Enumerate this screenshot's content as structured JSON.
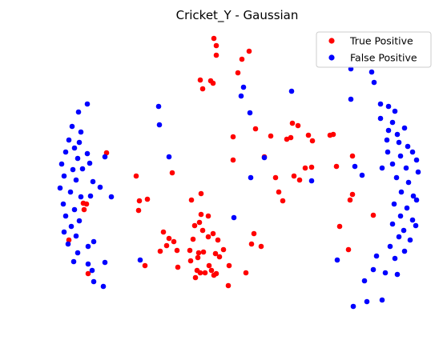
{
  "chart_data": {
    "type": "scatter",
    "title": "Cricket_Y - Gaussian",
    "xlabel": "",
    "ylabel": "",
    "axes_visible": false,
    "grid": false,
    "legend_placement": "top-right",
    "series": [
      {
        "name": "True Positive",
        "color": "#ff0000",
        "points": [
          [
            267,
            48
          ],
          [
            270,
            57
          ],
          [
            270,
            69
          ],
          [
            302,
            74
          ],
          [
            311,
            64
          ],
          [
            297,
            91
          ],
          [
            250,
            100
          ],
          [
            263,
            101
          ],
          [
            266,
            104
          ],
          [
            253,
            111
          ],
          [
            133,
            191
          ],
          [
            104,
            254
          ],
          [
            108,
            255
          ],
          [
            105,
            262
          ],
          [
            86,
            300
          ],
          [
            110,
            342
          ],
          [
            365,
            154
          ],
          [
            372,
            157
          ],
          [
            319,
            161
          ],
          [
            291,
            171
          ],
          [
            338,
            170
          ],
          [
            358,
            174
          ],
          [
            363,
            172
          ],
          [
            385,
            169
          ],
          [
            390,
            176
          ],
          [
            412,
            169
          ],
          [
            416,
            168
          ],
          [
            440,
            195
          ],
          [
            291,
            200
          ],
          [
            330,
            196
          ],
          [
            381,
            210
          ],
          [
            389,
            209
          ],
          [
            420,
            208
          ],
          [
            215,
            216
          ],
          [
            170,
            220
          ],
          [
            344,
            222
          ],
          [
            367,
            220
          ],
          [
            374,
            225
          ],
          [
            440,
            243
          ],
          [
            437,
            250
          ],
          [
            348,
            240
          ],
          [
            353,
            251
          ],
          [
            251,
            242
          ],
          [
            239,
            250
          ],
          [
            174,
            251
          ],
          [
            184,
            249
          ],
          [
            173,
            263
          ],
          [
            466,
            269
          ],
          [
            251,
            268
          ],
          [
            260,
            270
          ],
          [
            249,
            278
          ],
          [
            424,
            283
          ],
          [
            204,
            290
          ],
          [
            243,
            282
          ],
          [
            253,
            288
          ],
          [
            266,
            292
          ],
          [
            211,
            298
          ],
          [
            217,
            302
          ],
          [
            208,
            307
          ],
          [
            241,
            299
          ],
          [
            272,
            300
          ],
          [
            260,
            296
          ],
          [
            317,
            292
          ],
          [
            314,
            305
          ],
          [
            326,
            308
          ],
          [
            200,
            314
          ],
          [
            221,
            313
          ],
          [
            237,
            313
          ],
          [
            248,
            316
          ],
          [
            254,
            315
          ],
          [
            269,
            317
          ],
          [
            279,
            312
          ],
          [
            435,
            312
          ],
          [
            181,
            332
          ],
          [
            222,
            334
          ],
          [
            238,
            326
          ],
          [
            247,
            322
          ],
          [
            261,
            332
          ],
          [
            274,
            321
          ],
          [
            286,
            332
          ],
          [
            246,
            338
          ],
          [
            250,
            341
          ],
          [
            256,
            341
          ],
          [
            264,
            338
          ],
          [
            267,
            344
          ],
          [
            270,
            342
          ],
          [
            244,
            347
          ],
          [
            285,
            357
          ],
          [
            307,
            341
          ]
        ]
      },
      {
        "name": "False Positive",
        "color": "#0000ff",
        "points": [
          [
            109,
            130
          ],
          [
            98,
            140
          ],
          [
            90,
            158
          ],
          [
            101,
            165
          ],
          [
            86,
            175
          ],
          [
            99,
            178
          ],
          [
            93,
            185
          ],
          [
            82,
            190
          ],
          [
            97,
            198
          ],
          [
            109,
            192
          ],
          [
            103,
            211
          ],
          [
            112,
            204
          ],
          [
            77,
            205
          ],
          [
            91,
            212
          ],
          [
            80,
            220
          ],
          [
            95,
            225
          ],
          [
            75,
            235
          ],
          [
            88,
            240
          ],
          [
            101,
            246
          ],
          [
            79,
            255
          ],
          [
            93,
            262
          ],
          [
            82,
            270
          ],
          [
            99,
            276
          ],
          [
            89,
            283
          ],
          [
            80,
            290
          ],
          [
            95,
            295
          ],
          [
            85,
            305
          ],
          [
            110,
            308
          ],
          [
            117,
            302
          ],
          [
            97,
            316
          ],
          [
            92,
            327
          ],
          [
            110,
            330
          ],
          [
            131,
            328
          ],
          [
            115,
            338
          ],
          [
            117,
            352
          ],
          [
            129,
            358
          ],
          [
            116,
            227
          ],
          [
            113,
            245
          ],
          [
            125,
            234
          ],
          [
            139,
            246
          ],
          [
            131,
            196
          ],
          [
            198,
            133
          ],
          [
            199,
            156
          ],
          [
            211,
            196
          ],
          [
            175,
            325
          ],
          [
            304,
            109
          ],
          [
            301,
            120
          ],
          [
            312,
            141
          ],
          [
            330,
            197
          ],
          [
            292,
            272
          ],
          [
            364,
            114
          ],
          [
            313,
            222
          ],
          [
            389,
            226
          ],
          [
            438,
            86
          ],
          [
            464,
            90
          ],
          [
            467,
            103
          ],
          [
            438,
            124
          ],
          [
            475,
            130
          ],
          [
            485,
            133
          ],
          [
            493,
            139
          ],
          [
            475,
            148
          ],
          [
            490,
            153
          ],
          [
            485,
            163
          ],
          [
            496,
            168
          ],
          [
            505,
            160
          ],
          [
            483,
            175
          ],
          [
            498,
            178
          ],
          [
            509,
            183
          ],
          [
            484,
            190
          ],
          [
            500,
            195
          ],
          [
            515,
            190
          ],
          [
            490,
            205
          ],
          [
            507,
            210
          ],
          [
            520,
            200
          ],
          [
            495,
            222
          ],
          [
            510,
            228
          ],
          [
            522,
            215
          ],
          [
            501,
            240
          ],
          [
            516,
            245
          ],
          [
            492,
            255
          ],
          [
            508,
            260
          ],
          [
            520,
            250
          ],
          [
            500,
            270
          ],
          [
            515,
            275
          ],
          [
            490,
            280
          ],
          [
            504,
            288
          ],
          [
            519,
            282
          ],
          [
            498,
            296
          ],
          [
            512,
            300
          ],
          [
            487,
            308
          ],
          [
            505,
            314
          ],
          [
            493,
            323
          ],
          [
            470,
            320
          ],
          [
            481,
            341
          ],
          [
            496,
            343
          ],
          [
            466,
            337
          ],
          [
            455,
            351
          ],
          [
            441,
            383
          ],
          [
            458,
            377
          ],
          [
            477,
            375
          ],
          [
            452,
            219
          ],
          [
            443,
            208
          ],
          [
            477,
            210
          ],
          [
            421,
            325
          ]
        ]
      }
    ]
  }
}
